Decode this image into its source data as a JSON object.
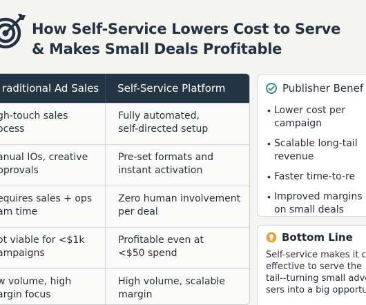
{
  "header": {
    "title_line1": "How Self-Service Lowers Cost to Serve",
    "title_line2": "& Makes Small Deals Profitable",
    "logo_icon": "target-arrow-icon"
  },
  "table": {
    "headers": [
      "raditional Ad Sales",
      "Self-Service Platform"
    ],
    "rows": [
      {
        "left": [
          "gh-touch sales",
          "ocess"
        ],
        "right": [
          "Fully automated,",
          "self-directed setup"
        ]
      },
      {
        "left": [
          "anual IOs, creative",
          "pprovals"
        ],
        "right": [
          "Pre-set formats and",
          "instant activation"
        ]
      },
      {
        "left": [
          "equires sales + ops",
          "am time"
        ],
        "right": [
          "Zero human involvement",
          "per deal"
        ]
      },
      {
        "left": [
          "ot viable for <$1k",
          "ampaigns"
        ],
        "right": [
          "Profitable even at",
          "<$50 spend"
        ]
      },
      {
        "left": [
          "w volume, high",
          "argin focus"
        ],
        "right": [
          "High volume, scalable",
          "margin"
        ]
      }
    ]
  },
  "benefits": {
    "title": "Publisher Benef",
    "icon": "check-circle-icon",
    "items": [
      [
        "Lower cost per",
        "campaign"
      ],
      [
        "Scalable long-tail",
        "revenue"
      ],
      [
        "Faster time-to-re"
      ],
      [
        "Improved margins",
        "on small deals"
      ]
    ]
  },
  "bottom_line": {
    "title": "Bottom Line",
    "icon": "lightbulb-icon",
    "lines": [
      "Self-service makes it c",
      "effective to serve the",
      "tail--turning small adve",
      "sers into a big opportu"
    ]
  },
  "colors": {
    "header_bg": "#243645",
    "accent_teal": "#2f8f86",
    "accent_amber": "#e8a23a",
    "text_dark": "#243343"
  }
}
